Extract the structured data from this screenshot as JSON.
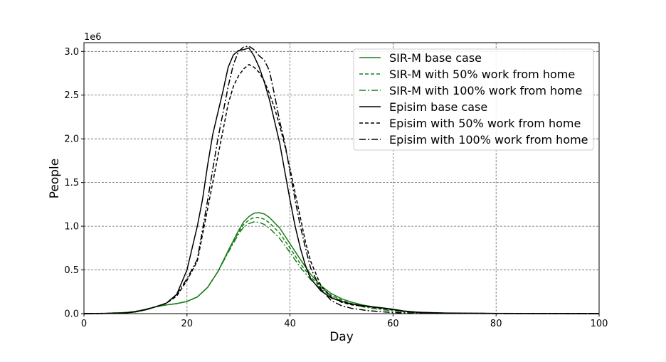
{
  "chart_data": {
    "type": "line",
    "xlabel": "Day",
    "ylabel": "People",
    "offset_text": "1e6",
    "xlim": [
      0,
      100
    ],
    "ylim": [
      0,
      3.1
    ],
    "y_scale": 1000000,
    "x_ticks": [
      0,
      20,
      40,
      60,
      80,
      100
    ],
    "x_tick_labels": [
      "0",
      "20",
      "40",
      "60",
      "80",
      "100"
    ],
    "y_ticks": [
      0,
      0.5,
      1.0,
      1.5,
      2.0,
      2.5,
      3.0
    ],
    "y_tick_labels": [
      "0.0",
      "0.5",
      "1.0",
      "1.5",
      "2.0",
      "2.5",
      "3.0"
    ],
    "grid": true,
    "legend_position": "top-right",
    "colors": {
      "sirm": "#1a7f1a",
      "episim": "#000000"
    },
    "series": [
      {
        "name": "SIR-M base case",
        "color": "#1a7f1a",
        "dash": "solid",
        "x": [
          0,
          4,
          8,
          10,
          12,
          14,
          16,
          18,
          20,
          22,
          24,
          26,
          28,
          30,
          31,
          32,
          33,
          34,
          35,
          36,
          38,
          40,
          42,
          44,
          46,
          48,
          50,
          52,
          54,
          56,
          58,
          60,
          62,
          64,
          66,
          70,
          80,
          90,
          100
        ],
        "y": [
          0,
          0.003,
          0.012,
          0.025,
          0.05,
          0.08,
          0.1,
          0.115,
          0.14,
          0.19,
          0.3,
          0.48,
          0.72,
          0.95,
          1.05,
          1.11,
          1.15,
          1.155,
          1.14,
          1.1,
          0.98,
          0.8,
          0.62,
          0.45,
          0.32,
          0.23,
          0.17,
          0.13,
          0.1,
          0.08,
          0.065,
          0.05,
          0.03,
          0.02,
          0.015,
          0.008,
          0.003,
          0.001,
          0
        ]
      },
      {
        "name": "SIR-M with 50% work from home",
        "color": "#1a7f1a",
        "dash": "dashed",
        "x": [
          0,
          4,
          8,
          10,
          12,
          14,
          16,
          18,
          20,
          22,
          24,
          26,
          28,
          30,
          31,
          32,
          33,
          34,
          35,
          36,
          38,
          40,
          42,
          44,
          46,
          48,
          50,
          52,
          54,
          56,
          58,
          60,
          62,
          64,
          66,
          70,
          80,
          90,
          100
        ],
        "y": [
          0,
          0.003,
          0.012,
          0.025,
          0.05,
          0.08,
          0.1,
          0.115,
          0.14,
          0.19,
          0.3,
          0.48,
          0.71,
          0.93,
          1.02,
          1.07,
          1.1,
          1.1,
          1.08,
          1.04,
          0.92,
          0.75,
          0.57,
          0.42,
          0.3,
          0.21,
          0.155,
          0.115,
          0.09,
          0.07,
          0.055,
          0.04,
          0.025,
          0.015,
          0.01,
          0.006,
          0.002,
          0.001,
          0
        ]
      },
      {
        "name": "SIR-M with 100% work from home",
        "color": "#1a7f1a",
        "dash": "dashdot",
        "x": [
          0,
          4,
          8,
          10,
          12,
          14,
          16,
          18,
          20,
          22,
          24,
          26,
          28,
          30,
          31,
          32,
          33,
          34,
          35,
          36,
          38,
          40,
          42,
          44,
          46,
          48,
          50,
          52,
          54,
          56,
          58,
          60,
          62,
          64,
          66,
          70,
          80,
          90,
          100
        ],
        "y": [
          0,
          0.003,
          0.012,
          0.025,
          0.05,
          0.08,
          0.1,
          0.115,
          0.14,
          0.19,
          0.3,
          0.48,
          0.7,
          0.91,
          0.99,
          1.03,
          1.05,
          1.045,
          1.02,
          0.98,
          0.86,
          0.7,
          0.53,
          0.39,
          0.28,
          0.2,
          0.145,
          0.105,
          0.08,
          0.06,
          0.045,
          0.03,
          0.02,
          0.012,
          0.008,
          0.005,
          0.002,
          0.001,
          0
        ]
      },
      {
        "name": "Episim base case",
        "color": "#000000",
        "dash": "solid",
        "x": [
          0,
          4,
          8,
          10,
          12,
          14,
          16,
          18,
          20,
          22,
          23,
          24,
          25,
          26,
          27,
          28,
          29,
          30,
          31,
          32,
          33,
          34,
          35,
          36,
          37,
          38,
          39,
          40,
          41,
          42,
          43,
          44,
          46,
          48,
          50,
          52,
          55,
          58,
          60,
          62,
          65,
          70,
          80,
          90,
          100
        ],
        "y": [
          0,
          0.002,
          0.008,
          0.02,
          0.045,
          0.08,
          0.12,
          0.22,
          0.5,
          1.0,
          1.3,
          1.7,
          2.05,
          2.3,
          2.55,
          2.82,
          2.96,
          3.01,
          3.02,
          3.04,
          2.95,
          2.82,
          2.65,
          2.45,
          2.2,
          1.95,
          1.62,
          1.3,
          1.0,
          0.75,
          0.55,
          0.4,
          0.26,
          0.18,
          0.14,
          0.11,
          0.085,
          0.065,
          0.05,
          0.03,
          0.015,
          0.006,
          0.002,
          0.001,
          0
        ]
      },
      {
        "name": "Episim with 50% work from home",
        "color": "#000000",
        "dash": "dashed",
        "x": [
          0,
          4,
          8,
          10,
          12,
          14,
          16,
          18,
          20,
          22,
          23,
          24,
          25,
          26,
          27,
          28,
          29,
          30,
          31,
          32,
          33,
          34,
          35,
          36,
          37,
          38,
          39,
          40,
          41,
          42,
          43,
          44,
          46,
          48,
          50,
          52,
          55,
          58,
          60,
          62,
          65,
          70,
          80,
          90,
          100
        ],
        "y": [
          0,
          0.002,
          0.008,
          0.02,
          0.045,
          0.08,
          0.12,
          0.2,
          0.38,
          0.6,
          0.9,
          1.2,
          1.5,
          1.8,
          2.1,
          2.4,
          2.6,
          2.72,
          2.8,
          2.85,
          2.82,
          2.76,
          2.66,
          2.52,
          2.35,
          2.15,
          1.92,
          1.66,
          1.38,
          1.1,
          0.82,
          0.6,
          0.32,
          0.19,
          0.13,
          0.1,
          0.08,
          0.06,
          0.045,
          0.028,
          0.015,
          0.006,
          0.002,
          0.001,
          0
        ]
      },
      {
        "name": "Episim with 100% work from home",
        "color": "#000000",
        "dash": "dashdot",
        "x": [
          0,
          4,
          8,
          10,
          12,
          14,
          16,
          18,
          20,
          22,
          23,
          24,
          25,
          26,
          27,
          28,
          29,
          30,
          31,
          32,
          33,
          34,
          35,
          36,
          37,
          38,
          39,
          40,
          41,
          42,
          43,
          44,
          46,
          48,
          50,
          52,
          55,
          58,
          60,
          62,
          65,
          70,
          80,
          90,
          100
        ],
        "y": [
          0,
          0.002,
          0.008,
          0.02,
          0.045,
          0.08,
          0.12,
          0.22,
          0.4,
          0.62,
          0.95,
          1.3,
          1.65,
          2.0,
          2.3,
          2.6,
          2.85,
          3.0,
          3.05,
          3.06,
          3.02,
          2.95,
          2.9,
          2.78,
          2.5,
          2.2,
          1.95,
          1.62,
          1.3,
          1.0,
          0.75,
          0.52,
          0.28,
          0.15,
          0.09,
          0.06,
          0.035,
          0.02,
          0.012,
          0.008,
          0.005,
          0.003,
          0.001,
          0.001,
          0
        ]
      }
    ]
  }
}
